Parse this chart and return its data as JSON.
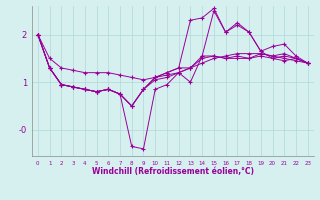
{
  "xlabel": "Windchill (Refroidissement éolien,°C)",
  "background_color": "#d6f0f0",
  "grid_color": "#b0d8d8",
  "line_color": "#990099",
  "ylim": [
    -0.55,
    2.6
  ],
  "xlim": [
    -0.5,
    23.5
  ],
  "series": [
    [
      2.0,
      1.5,
      1.3,
      1.25,
      1.2,
      1.2,
      1.2,
      1.15,
      1.1,
      1.05,
      1.1,
      1.15,
      1.2,
      1.3,
      1.4,
      1.5,
      1.55,
      1.6,
      1.6,
      1.6,
      1.55,
      1.5,
      1.45,
      1.4
    ],
    [
      2.0,
      1.3,
      0.95,
      0.9,
      0.85,
      0.8,
      0.85,
      0.75,
      0.5,
      0.85,
      1.05,
      1.1,
      1.2,
      1.3,
      1.55,
      1.55,
      1.5,
      1.55,
      1.5,
      1.55,
      1.5,
      1.55,
      1.5,
      1.4
    ],
    [
      2.0,
      1.3,
      0.95,
      0.9,
      0.85,
      0.8,
      0.85,
      0.75,
      0.5,
      0.85,
      1.1,
      1.2,
      1.3,
      1.3,
      1.5,
      1.55,
      1.5,
      1.5,
      1.5,
      1.6,
      1.55,
      1.6,
      1.5,
      1.4
    ],
    [
      2.0,
      1.3,
      0.95,
      0.9,
      0.85,
      0.8,
      0.85,
      0.75,
      -0.35,
      -0.4,
      0.85,
      0.95,
      1.2,
      1.0,
      1.55,
      2.5,
      2.05,
      2.2,
      2.05,
      1.65,
      1.5,
      1.45,
      1.5,
      1.4
    ],
    [
      2.0,
      1.3,
      0.95,
      0.9,
      0.85,
      0.8,
      0.85,
      0.75,
      0.5,
      0.85,
      1.1,
      1.2,
      1.3,
      2.3,
      2.35,
      2.55,
      2.05,
      2.25,
      2.05,
      1.65,
      1.75,
      1.8,
      1.55,
      1.4
    ]
  ]
}
